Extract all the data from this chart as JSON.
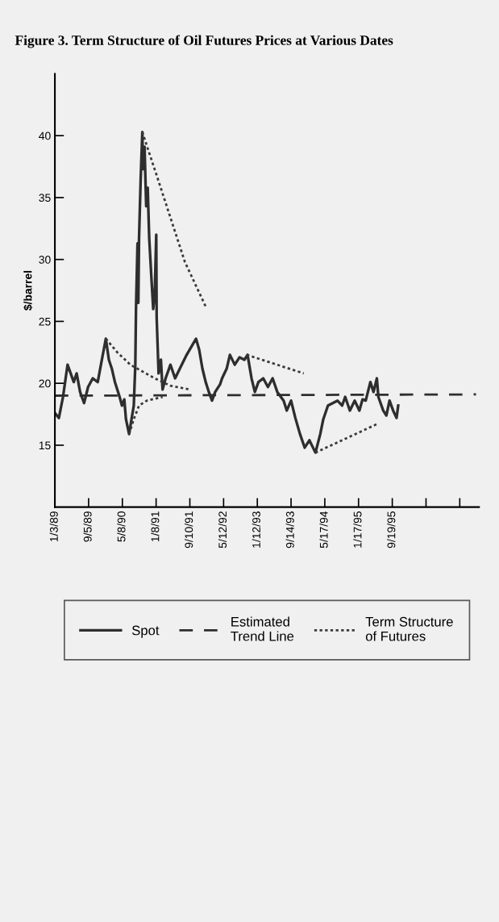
{
  "chart_data": {
    "type": "line",
    "title": "Figure 3. Term Structure of Oil Futures Prices at Various Dates",
    "ylabel": "$/barrel",
    "xlim": [
      "1989-01-03",
      "1997-06-10"
    ],
    "xticks": [
      {
        "value": "1989-01-03",
        "label": "1/3/89"
      },
      {
        "value": "1989-09-05",
        "label": "9/5/89"
      },
      {
        "value": "1990-05-08",
        "label": "5/8/90"
      },
      {
        "value": "1991-01-08",
        "label": "1/8/91"
      },
      {
        "value": "1991-09-10",
        "label": "9/10/91"
      },
      {
        "value": "1992-05-12",
        "label": "5/12/92"
      },
      {
        "value": "1993-01-12",
        "label": "1/12/93"
      },
      {
        "value": "1993-09-14",
        "label": "9/14/93"
      },
      {
        "value": "1994-05-17",
        "label": "5/17/94"
      },
      {
        "value": "1995-01-17",
        "label": "1/17/95"
      },
      {
        "value": "1995-09-19",
        "label": "9/19/95"
      },
      {
        "value": "1996-05-21",
        "label": null
      },
      {
        "value": "1997-01-21",
        "label": null
      }
    ],
    "ylim": [
      10,
      45
    ],
    "yticks": [
      15,
      20,
      25,
      30,
      35,
      40
    ],
    "grid": false,
    "legend": "bottom",
    "marker": "none",
    "series": [
      {
        "name": "Spot",
        "color": "#2e2e2e",
        "line_style": "solid",
        "x": [
          "1989-01-03",
          "1989-02-01",
          "1989-03-03",
          "1989-04-05",
          "1989-05-20",
          "1989-06-10",
          "1989-07-05",
          "1989-08-03",
          "1989-09-01",
          "1989-10-05",
          "1989-11-10",
          "1989-12-10",
          "1990-01-08",
          "1990-01-30",
          "1990-02-20",
          "1990-03-15",
          "1990-04-18",
          "1990-05-05",
          "1990-05-22",
          "1990-06-03",
          "1990-06-26",
          "1990-07-18",
          "1990-07-30",
          "1990-08-10",
          "1990-08-15",
          "1990-08-26",
          "1990-09-01",
          "1990-09-06",
          "1990-09-18",
          "1990-09-30",
          "1990-10-05",
          "1990-10-16",
          "1990-10-28",
          "1990-11-08",
          "1990-11-19",
          "1990-12-06",
          "1990-12-18",
          "1990-12-29",
          "1991-01-09",
          "1991-01-12",
          "1991-01-26",
          "1991-02-12",
          "1991-02-24",
          "1991-03-18",
          "1991-04-22",
          "1991-05-26",
          "1991-06-30",
          "1991-08-18",
          "1991-10-25",
          "1991-11-17",
          "1991-12-10",
          "1992-01-03",
          "1992-01-26",
          "1992-02-18",
          "1992-03-12",
          "1992-04-16",
          "1992-05-01",
          "1992-06-04",
          "1992-06-27",
          "1992-08-01",
          "1992-09-05",
          "1992-10-10",
          "1992-11-02",
          "1992-12-01",
          "1992-12-25",
          "1993-01-20",
          "1993-02-24",
          "1993-03-30",
          "1993-05-03",
          "1993-06-06",
          "1993-07-22",
          "1993-08-14",
          "1993-09-14",
          "1993-10-15",
          "1993-11-18",
          "1993-12-22",
          "1994-01-25",
          "1994-03-10",
          "1994-04-14",
          "1994-05-06",
          "1994-06-09",
          "1994-08-17",
          "1994-09-20",
          "1994-10-12",
          "1994-11-15",
          "1994-12-20",
          "1995-01-23",
          "1995-02-15",
          "1995-03-10",
          "1995-04-13",
          "1995-05-06",
          "1995-05-30",
          "1995-06-10",
          "1995-07-15",
          "1995-08-07",
          "1995-08-30",
          "1995-09-25",
          "1995-10-20",
          "1995-11-01"
        ],
        "values": [
          17.6,
          17.2,
          18.9,
          21.5,
          20.1,
          20.8,
          19.3,
          18.4,
          19.7,
          20.4,
          20.1,
          21.9,
          23.6,
          21.9,
          21.2,
          20.1,
          18.9,
          18.2,
          18.7,
          17.1,
          15.9,
          17.4,
          18.2,
          21.5,
          26.0,
          31.3,
          26.5,
          31.7,
          36.5,
          40.3,
          37.3,
          39.1,
          34.3,
          35.8,
          31.7,
          28.3,
          26.0,
          27.2,
          32.0,
          25.3,
          20.8,
          21.9,
          19.5,
          20.4,
          21.5,
          20.4,
          21.2,
          22.3,
          23.6,
          22.7,
          21.2,
          20.1,
          19.3,
          18.6,
          19.3,
          19.9,
          20.4,
          21.2,
          22.3,
          21.5,
          22.1,
          21.9,
          22.3,
          20.4,
          19.3,
          20.1,
          20.4,
          19.7,
          20.4,
          19.3,
          18.6,
          17.8,
          18.6,
          17.2,
          15.9,
          14.8,
          15.4,
          14.4,
          15.9,
          17.1,
          18.2,
          18.6,
          18.2,
          18.9,
          17.8,
          18.6,
          17.8,
          18.7,
          18.6,
          20.1,
          19.3,
          20.4,
          18.9,
          17.8,
          17.4,
          18.6,
          17.8,
          17.2,
          18.2
        ]
      },
      {
        "name": "Estimated\nTrend Line",
        "color": "#2e2e2e",
        "line_style": "dashed",
        "x": [
          "1989-01-03",
          "1997-05-19"
        ],
        "values": [
          19.0,
          19.1
        ]
      },
      {
        "name": "Term Structure\nof Futures",
        "color": "#3a3a3a",
        "line_style": "dotted",
        "x": [
          "1990-09-30",
          "1990-11-13",
          "1991-01-09",
          "1991-08-05",
          "1992-01-03"
        ],
        "values": [
          40.3,
          38.8,
          36.9,
          29.8,
          26.2
        ]
      },
      {
        "color": "#3a3a3a",
        "line_style": "dotted",
        "x": [
          "1990-01-08",
          "1990-04-01",
          "1990-07-05",
          "1990-12-29",
          "1991-04-22",
          "1991-09-10"
        ],
        "values": [
          23.6,
          22.5,
          21.5,
          20.4,
          19.8,
          19.5
        ]
      },
      {
        "color": "#3a3a3a",
        "line_style": "dotted",
        "x": [
          "1990-06-26",
          "1990-07-30",
          "1990-09-06",
          "1990-11-02",
          "1991-02-24"
        ],
        "values": [
          15.9,
          17.1,
          18.2,
          18.6,
          18.9
        ]
      },
      {
        "color": "#3a3a3a",
        "line_style": "dotted",
        "x": [
          "1992-10-27",
          "1993-12-15"
        ],
        "values": [
          22.3,
          20.8
        ]
      },
      {
        "color": "#3a3a3a",
        "line_style": "dotted",
        "x": [
          "1994-03-10",
          "1995-05-30"
        ],
        "values": [
          14.4,
          16.7
        ]
      }
    ]
  }
}
